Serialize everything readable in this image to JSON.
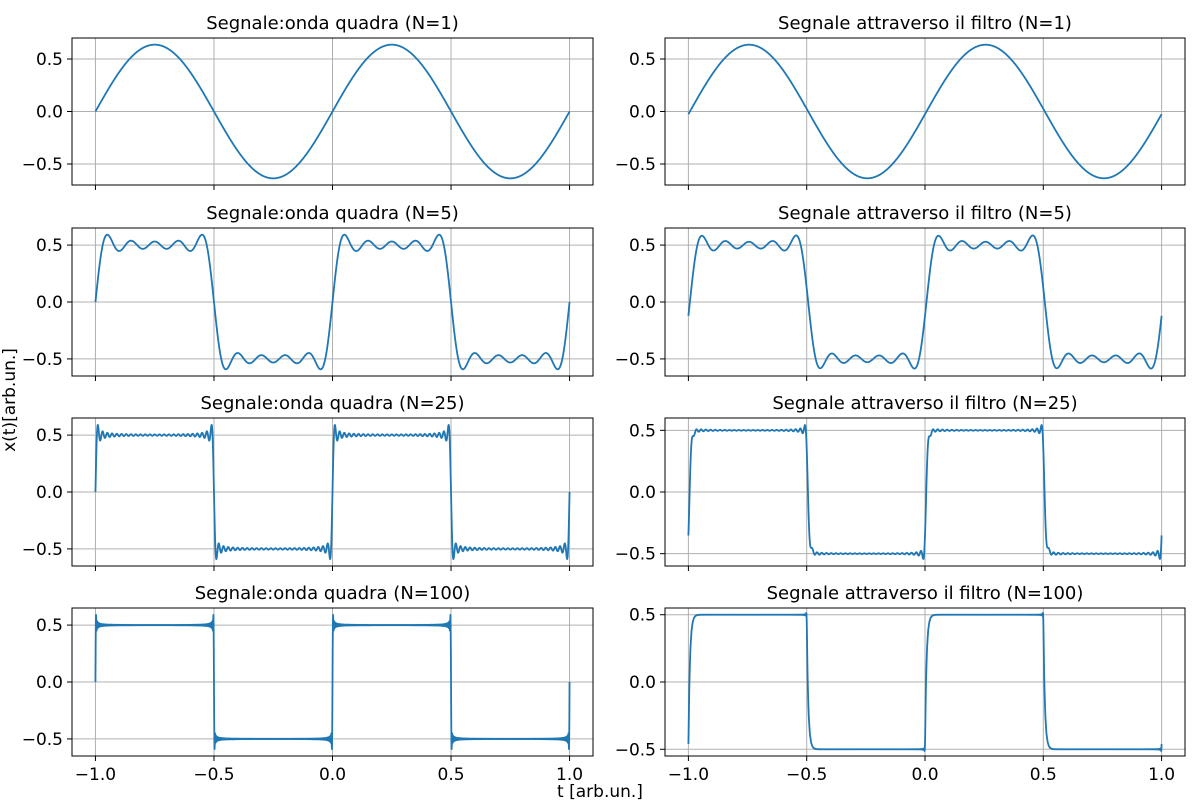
{
  "figure": {
    "xlabel": "t  [arb.un.]",
    "ylabel": "x(t)[arb.un.]"
  },
  "colors": {
    "line": "#1f77b4",
    "grid": "#b0b0b0"
  },
  "chart_data": [
    {
      "type": "line",
      "title": "Segnale:onda quadra (N=1)",
      "N": 1,
      "filtered": false,
      "xlim": [
        -1.0,
        1.0
      ],
      "ylim": [
        -0.7,
        0.7
      ],
      "xticks": [
        "−1.0",
        "−0.5",
        "0.0",
        "0.5",
        "1.0"
      ],
      "xtick_values": [
        -1.0,
        -0.5,
        0.0,
        0.5,
        1.0
      ],
      "yticks": [
        "0.5",
        "0.0",
        "−0.5"
      ],
      "ytick_values": [
        0.5,
        0.0,
        -0.5
      ],
      "grid": true,
      "show_xticklabels": false
    },
    {
      "type": "line",
      "title": "Segnale attraverso il filtro (N=1)",
      "N": 1,
      "filtered": true,
      "xlim": [
        -1.0,
        1.0
      ],
      "ylim": [
        -0.7,
        0.7
      ],
      "xticks": [
        "−1.0",
        "−0.5",
        "0.0",
        "0.5",
        "1.0"
      ],
      "xtick_values": [
        -1.0,
        -0.5,
        0.0,
        0.5,
        1.0
      ],
      "yticks": [
        "0.5",
        "0.0",
        "−0.5"
      ],
      "ytick_values": [
        0.5,
        0.0,
        -0.5
      ],
      "grid": true,
      "show_xticklabels": false
    },
    {
      "type": "line",
      "title": "Segnale:onda quadra (N=5)",
      "N": 5,
      "filtered": false,
      "xlim": [
        -1.0,
        1.0
      ],
      "ylim": [
        -0.65,
        0.65
      ],
      "xticks": [
        "−1.0",
        "−0.5",
        "0.0",
        "0.5",
        "1.0"
      ],
      "xtick_values": [
        -1.0,
        -0.5,
        0.0,
        0.5,
        1.0
      ],
      "yticks": [
        "0.5",
        "0.0",
        "−0.5"
      ],
      "ytick_values": [
        0.5,
        0.0,
        -0.5
      ],
      "grid": true,
      "show_xticklabels": false
    },
    {
      "type": "line",
      "title": "Segnale attraverso il filtro (N=5)",
      "N": 5,
      "filtered": true,
      "xlim": [
        -1.0,
        1.0
      ],
      "ylim": [
        -0.65,
        0.65
      ],
      "xticks": [
        "−1.0",
        "−0.5",
        "0.0",
        "0.5",
        "1.0"
      ],
      "xtick_values": [
        -1.0,
        -0.5,
        0.0,
        0.5,
        1.0
      ],
      "yticks": [
        "0.5",
        "0.0",
        "−0.5"
      ],
      "ytick_values": [
        0.5,
        0.0,
        -0.5
      ],
      "grid": true,
      "show_xticklabels": false
    },
    {
      "type": "line",
      "title": "Segnale:onda quadra (N=25)",
      "N": 25,
      "filtered": false,
      "xlim": [
        -1.0,
        1.0
      ],
      "ylim": [
        -0.65,
        0.65
      ],
      "xticks": [
        "−1.0",
        "−0.5",
        "0.0",
        "0.5",
        "1.0"
      ],
      "xtick_values": [
        -1.0,
        -0.5,
        0.0,
        0.5,
        1.0
      ],
      "yticks": [
        "0.5",
        "0.0",
        "−0.5"
      ],
      "ytick_values": [
        0.5,
        0.0,
        -0.5
      ],
      "grid": true,
      "show_xticklabels": false
    },
    {
      "type": "line",
      "title": "Segnale attraverso il filtro (N=25)",
      "N": 25,
      "filtered": true,
      "xlim": [
        -1.0,
        1.0
      ],
      "ylim": [
        -0.6,
        0.6
      ],
      "xticks": [
        "−1.0",
        "−0.5",
        "0.0",
        "0.5",
        "1.0"
      ],
      "xtick_values": [
        -1.0,
        -0.5,
        0.0,
        0.5,
        1.0
      ],
      "yticks": [
        "0.5",
        "0.0",
        "−0.5"
      ],
      "ytick_values": [
        0.5,
        0.0,
        -0.5
      ],
      "grid": true,
      "show_xticklabels": false
    },
    {
      "type": "line",
      "title": "Segnale:onda quadra (N=100)",
      "N": 100,
      "filtered": false,
      "xlim": [
        -1.0,
        1.0
      ],
      "ylim": [
        -0.65,
        0.65
      ],
      "xticks": [
        "−1.0",
        "−0.5",
        "0.0",
        "0.5",
        "1.0"
      ],
      "xtick_values": [
        -1.0,
        -0.5,
        0.0,
        0.5,
        1.0
      ],
      "yticks": [
        "0.5",
        "0.0",
        "−0.5"
      ],
      "ytick_values": [
        0.5,
        0.0,
        -0.5
      ],
      "grid": true,
      "show_xticklabels": true
    },
    {
      "type": "line",
      "title": "Segnale attraverso il filtro (N=100)",
      "N": 100,
      "filtered": true,
      "xlim": [
        -1.0,
        1.0
      ],
      "ylim": [
        -0.55,
        0.55
      ],
      "xticks": [
        "−1.0",
        "−0.5",
        "0.0",
        "0.5",
        "1.0"
      ],
      "xtick_values": [
        -1.0,
        -0.5,
        0.0,
        0.5,
        1.0
      ],
      "yticks": [
        "0.5",
        "0.0",
        "−0.5"
      ],
      "ytick_values": [
        0.5,
        0.0,
        -0.5
      ],
      "grid": true,
      "show_xticklabels": true
    }
  ]
}
